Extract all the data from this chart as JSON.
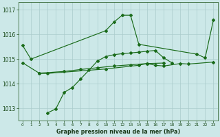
{
  "bg_color": "#cce8e8",
  "grid_color": "#aacccc",
  "line_color": "#1a6b1a",
  "title": "Graphe pression niveau de la mer (hPa)",
  "ylabel_ticks": [
    1013,
    1014,
    1015,
    1016,
    1017
  ],
  "xlim": [
    -0.5,
    23.5
  ],
  "ylim": [
    1012.5,
    1017.3
  ],
  "series1_x": [
    0,
    1,
    10,
    11,
    12,
    13,
    14,
    21,
    22,
    23
  ],
  "series1_y": [
    1015.55,
    1015.0,
    1016.15,
    1016.5,
    1016.78,
    1016.78,
    1015.6,
    1015.2,
    1015.05,
    1016.6
  ],
  "series2_x": [
    2,
    3,
    10,
    14,
    15,
    16,
    17,
    19,
    20,
    23
  ],
  "series2_y": [
    1014.42,
    1014.42,
    1014.6,
    1014.75,
    1014.82,
    1014.75,
    1014.72,
    1014.82,
    1014.8,
    1014.88
  ],
  "series3_x": [
    3,
    4,
    5,
    6,
    7,
    8,
    9,
    10,
    11,
    12,
    13,
    14,
    15,
    16,
    17,
    18
  ],
  "series3_y": [
    1012.82,
    1012.98,
    1013.65,
    1013.85,
    1014.2,
    1014.55,
    1014.92,
    1015.1,
    1015.18,
    1015.22,
    1015.25,
    1015.28,
    1015.32,
    1015.35,
    1015.05,
    1014.85
  ],
  "series4_x": [
    0,
    2,
    5,
    7,
    9,
    11,
    13,
    15,
    17
  ],
  "series4_y": [
    1014.85,
    1014.43,
    1014.5,
    1014.58,
    1014.65,
    1014.72,
    1014.77,
    1014.82,
    1014.84
  ]
}
